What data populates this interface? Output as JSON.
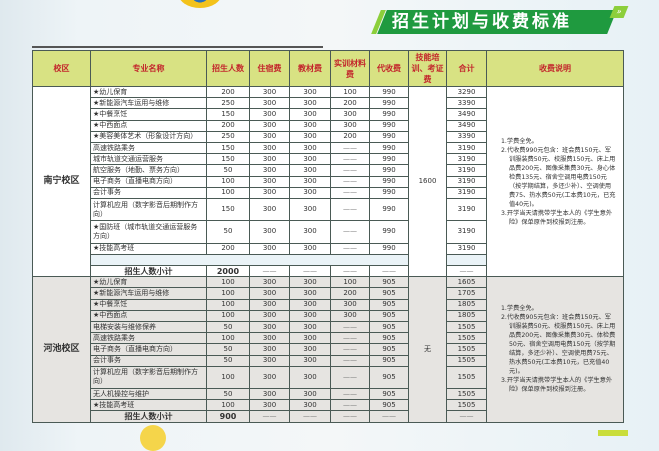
{
  "title": "招生计划与收费标准",
  "colors": {
    "header_bg": "#d8e283",
    "header_text": "#c3262c",
    "banner": "#1f9a3f",
    "hechi_bg": "#e6e4e1"
  },
  "headers": [
    "校区",
    "专业名称",
    "招生人数",
    "住宿费",
    "教材费",
    "实训材料费",
    "代收费",
    "技能培训、考证费",
    "合计",
    "收费说明"
  ],
  "campuses": [
    {
      "name": "南宁校区",
      "skill_fee": "1600",
      "rows": [
        {
          "major": "★幼儿保育",
          "quota": "200",
          "lodging": "300",
          "books": "300",
          "training": "100",
          "collected": "990",
          "total": "3290"
        },
        {
          "major": "★新能源汽车运用与维修",
          "quota": "250",
          "lodging": "300",
          "books": "300",
          "training": "200",
          "collected": "990",
          "total": "3390"
        },
        {
          "major": "★中餐烹饪",
          "quota": "150",
          "lodging": "300",
          "books": "300",
          "training": "300",
          "collected": "990",
          "total": "3490"
        },
        {
          "major": "★中西面点",
          "quota": "200",
          "lodging": "300",
          "books": "300",
          "training": "300",
          "collected": "990",
          "total": "3490"
        },
        {
          "major": "★美容美体艺术（形象设计方向）",
          "quota": "250",
          "lodging": "300",
          "books": "300",
          "training": "200",
          "collected": "990",
          "total": "3390"
        },
        {
          "major": "高速铁路乘务",
          "quota": "150",
          "lodging": "300",
          "books": "300",
          "training": "——",
          "collected": "990",
          "total": "3190"
        },
        {
          "major": "城市轨道交通运营服务",
          "quota": "150",
          "lodging": "300",
          "books": "300",
          "training": "——",
          "collected": "990",
          "total": "3190"
        },
        {
          "major": "航空服务（地勤、票务方向）",
          "quota": "50",
          "lodging": "300",
          "books": "300",
          "training": "——",
          "collected": "990",
          "total": "3190"
        },
        {
          "major": "电子商务（直播电商方向）",
          "quota": "100",
          "lodging": "300",
          "books": "300",
          "training": "——",
          "collected": "990",
          "total": "3190"
        },
        {
          "major": "会计事务",
          "quota": "100",
          "lodging": "300",
          "books": "300",
          "training": "——",
          "collected": "990",
          "total": "3190"
        },
        {
          "major": "计算机应用（数字影音后期制作方向）",
          "quota": "150",
          "lodging": "300",
          "books": "300",
          "training": "——",
          "collected": "990",
          "total": "3190",
          "tall": true
        },
        {
          "major": "★国防班（城市轨道交通运营服务方向）",
          "quota": "50",
          "lodging": "300",
          "books": "300",
          "training": "——",
          "collected": "990",
          "total": "3190",
          "tall": true
        },
        {
          "major": "★技能高考班",
          "quota": "200",
          "lodging": "300",
          "books": "300",
          "training": "——",
          "collected": "990",
          "total": "3190"
        }
      ],
      "has_blank_row": true,
      "subtotal": {
        "label": "招生人数小计",
        "quota": "2000",
        "lodging": "——",
        "books": "——",
        "training": "——",
        "collected": "——",
        "total": "——"
      },
      "notes": [
        "1.学费全免。",
        "2.代收费990元包含：班会费150元、军训服装费50元、校服费150元、床上用品费200元、图像采集费30元、身心体检费135元、宿舍空调用电费150元（按学期结算，多还少补）、空调使用费75、热水费50元(工本费10元，已充值40元)。",
        "3.开学当天请携带学生本人的《学生意外险》保单原件到校报到注册。"
      ]
    },
    {
      "name": "河池校区",
      "skill_fee": "无",
      "rows": [
        {
          "major": "★幼儿保育",
          "quota": "100",
          "lodging": "300",
          "books": "300",
          "training": "100",
          "collected": "905",
          "total": "1605"
        },
        {
          "major": "★新能源汽车运用与维修",
          "quota": "100",
          "lodging": "300",
          "books": "300",
          "training": "200",
          "collected": "905",
          "total": "1705"
        },
        {
          "major": "★中餐烹饪",
          "quota": "100",
          "lodging": "300",
          "books": "300",
          "training": "300",
          "collected": "905",
          "total": "1805"
        },
        {
          "major": "★中西面点",
          "quota": "100",
          "lodging": "300",
          "books": "300",
          "training": "300",
          "collected": "905",
          "total": "1805"
        },
        {
          "major": "电梯安装与维修保养",
          "quota": "50",
          "lodging": "300",
          "books": "300",
          "training": "——",
          "collected": "905",
          "total": "1505"
        },
        {
          "major": "高速铁路乘务",
          "quota": "100",
          "lodging": "300",
          "books": "300",
          "training": "——",
          "collected": "905",
          "total": "1505"
        },
        {
          "major": "电子商务（直播电商方向）",
          "quota": "50",
          "lodging": "300",
          "books": "300",
          "training": "——",
          "collected": "905",
          "total": "1505"
        },
        {
          "major": "会计事务",
          "quota": "50",
          "lodging": "300",
          "books": "300",
          "training": "——",
          "collected": "905",
          "total": "1505"
        },
        {
          "major": "计算机应用（数字影音后期制作方向）",
          "quota": "100",
          "lodging": "300",
          "books": "300",
          "training": "——",
          "collected": "905",
          "total": "1505",
          "tall": true
        },
        {
          "major": "无人机操控与维护",
          "quota": "50",
          "lodging": "300",
          "books": "300",
          "training": "——",
          "collected": "905",
          "total": "1505"
        },
        {
          "major": "★技能高考班",
          "quota": "100",
          "lodging": "300",
          "books": "300",
          "training": "——",
          "collected": "905",
          "total": "1505"
        }
      ],
      "has_blank_row": false,
      "subtotal": {
        "label": "招生人数小计",
        "quota": "900",
        "lodging": "——",
        "books": "——",
        "training": "——",
        "collected": "——",
        "total": "——"
      },
      "notes": [
        "1.学费全免。",
        "2.代收费905元包含：班会费150元、军训服装费50元、校服费150元、床上用品费200元、图像采集费30元、体检费50元、宿舍空调用电费150元（按学期结算，多还少补）、空调使用费75元、热水费50元(工本费10元，已充值40元)。",
        "3.开学当天请携带学生本人的《学生意外险》保单原件到校报到注册。"
      ]
    }
  ]
}
